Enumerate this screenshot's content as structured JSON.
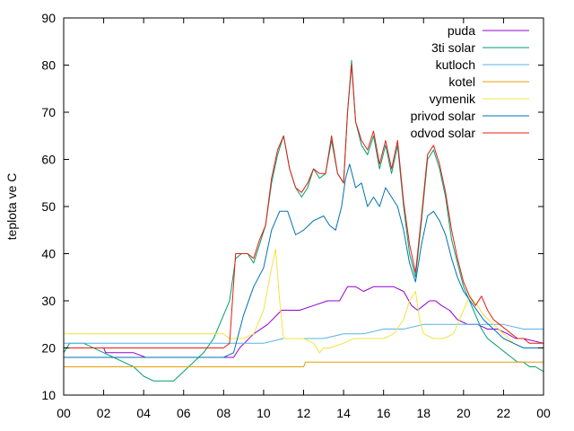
{
  "chart_data": {
    "type": "line",
    "title": "",
    "xlabel": "",
    "ylabel": "teplota ve C",
    "xlim": [
      0,
      24
    ],
    "ylim": [
      10,
      90
    ],
    "grid": false,
    "legend_position": "top-right",
    "x_tick_labels": [
      "00",
      "02",
      "04",
      "06",
      "08",
      "10",
      "12",
      "14",
      "16",
      "18",
      "20",
      "22",
      "00"
    ],
    "y_tick_labels": [
      "10",
      "20",
      "30",
      "40",
      "50",
      "60",
      "70",
      "80",
      "90"
    ],
    "series": [
      {
        "name": "puda",
        "color": "#9400d3",
        "x": [
          0,
          2,
          2.1,
          3.5,
          4.1,
          5,
          8.5,
          8.8,
          9.5,
          10.2,
          10.9,
          11.3,
          11.8,
          12.5,
          13.2,
          13.8,
          14.2,
          14.6,
          15,
          15.5,
          16,
          16.5,
          17,
          17.4,
          17.7,
          18,
          18.3,
          18.6,
          18.9,
          19.3,
          19.7,
          20.2,
          20.7,
          21.2,
          21.7,
          22.2,
          22.6,
          23,
          24
        ],
        "y": [
          20,
          20,
          19,
          19,
          18,
          18,
          18,
          20,
          23,
          25,
          28,
          28,
          28,
          29,
          30,
          30,
          33,
          33,
          32,
          33,
          33,
          33,
          32,
          29,
          28,
          29,
          30,
          30,
          29,
          28,
          26,
          25,
          25,
          24,
          24,
          23,
          22,
          22,
          21
        ]
      },
      {
        "name": "3ti solar",
        "color": "#009e73",
        "x": [
          0,
          0.3,
          1,
          2,
          2.5,
          3,
          3.5,
          4,
          4.5,
          5,
          5.5,
          6,
          6.5,
          7,
          7.5,
          8,
          8.3,
          8.6,
          8.9,
          9.2,
          9.5,
          9.8,
          10.1,
          10.4,
          10.7,
          11,
          11.3,
          11.6,
          11.9,
          12.2,
          12.5,
          12.8,
          13.1,
          13.4,
          13.7,
          14,
          14.2,
          14.4,
          14.6,
          14.9,
          15.2,
          15.5,
          15.8,
          16.1,
          16.4,
          16.7,
          17,
          17.3,
          17.6,
          17.9,
          18.2,
          18.5,
          18.8,
          19.1,
          19.4,
          19.7,
          20,
          20.3,
          20.6,
          20.9,
          21.2,
          21.5,
          21.8,
          22.1,
          22.4,
          22.7,
          23,
          23.3,
          23.6,
          24
        ],
        "y": [
          19,
          21,
          21,
          19,
          18,
          17,
          16,
          14,
          13,
          13,
          13,
          15,
          17,
          19,
          22,
          27,
          30,
          39,
          40,
          40,
          38,
          42,
          46,
          55,
          61,
          65,
          58,
          54,
          52,
          54,
          58,
          56,
          57,
          64,
          57,
          55,
          70,
          81,
          68,
          63,
          61,
          65,
          58,
          63,
          57,
          63,
          50,
          40,
          35,
          47,
          60,
          62,
          58,
          52,
          43,
          38,
          33,
          30,
          27,
          24,
          22,
          21,
          20,
          19,
          18,
          17,
          17,
          16,
          16,
          15
        ]
      },
      {
        "name": "kutloch",
        "color": "#56b4e9",
        "x": [
          0,
          2,
          2.5,
          3.5,
          4,
          8,
          9,
          10,
          11,
          12,
          13,
          14,
          15,
          16,
          17,
          18,
          19,
          20,
          21,
          22,
          23,
          24
        ],
        "y": [
          21,
          21,
          21,
          21,
          21,
          21,
          21,
          21,
          22,
          22,
          22,
          23,
          23,
          24,
          24,
          25,
          25,
          25,
          25,
          25,
          24,
          24
        ]
      },
      {
        "name": "kotel",
        "color": "#e69f00",
        "x": [
          0,
          12,
          12.1,
          24
        ],
        "y": [
          16,
          16,
          17,
          17
        ]
      },
      {
        "name": "vymenik",
        "color": "#f0e442",
        "x": [
          0,
          8,
          8.3,
          8.6,
          9,
          9.5,
          10,
          10.4,
          10.6,
          10.8,
          11,
          11.3,
          12,
          12.5,
          12.8,
          13,
          13.3,
          14,
          14.5,
          15,
          16,
          16.5,
          17,
          17.3,
          17.6,
          17.8,
          18,
          18.5,
          19,
          19.5,
          20,
          20.3,
          20.7,
          21,
          21.5,
          22,
          22.5,
          23,
          24
        ],
        "y": [
          23,
          23,
          22,
          22,
          22,
          23,
          28,
          37,
          41,
          30,
          22,
          22,
          22,
          21,
          19,
          20,
          20,
          21,
          22,
          22,
          22,
          23,
          26,
          30,
          32,
          26,
          23,
          22,
          22,
          23,
          28,
          31,
          29,
          27,
          25,
          23,
          21,
          20,
          20
        ]
      },
      {
        "name": "privod solar",
        "color": "#0072b2",
        "x": [
          0,
          8,
          8.5,
          9,
          9.5,
          10,
          10.4,
          10.8,
          11.2,
          11.6,
          12,
          12.5,
          13,
          13.3,
          13.6,
          13.9,
          14.1,
          14.3,
          14.6,
          14.9,
          15.2,
          15.5,
          15.8,
          16.1,
          16.4,
          16.7,
          17,
          17.3,
          17.6,
          17.9,
          18.2,
          18.5,
          18.8,
          19.1,
          19.4,
          19.7,
          20,
          20.5,
          21,
          21.5,
          22,
          22.5,
          23,
          23.5,
          24
        ],
        "y": [
          18,
          18,
          19,
          27,
          33,
          37,
          45,
          49,
          49,
          44,
          45,
          47,
          48,
          46,
          45,
          50,
          56,
          59,
          54,
          55,
          50,
          52,
          50,
          54,
          52,
          50,
          45,
          38,
          34,
          42,
          48,
          49,
          47,
          44,
          39,
          35,
          32,
          29,
          26,
          24,
          22,
          21,
          20,
          20,
          20
        ]
      },
      {
        "name": "odvod solar",
        "color": "#e51e10",
        "x": [
          0,
          8,
          8.3,
          8.6,
          8.9,
          9.2,
          9.5,
          9.8,
          10.1,
          10.4,
          10.7,
          11,
          11.3,
          11.6,
          11.9,
          12.2,
          12.5,
          12.8,
          13.1,
          13.4,
          13.7,
          14,
          14.2,
          14.4,
          14.6,
          14.9,
          15.2,
          15.5,
          15.8,
          16.1,
          16.4,
          16.7,
          17,
          17.3,
          17.6,
          17.9,
          18.2,
          18.5,
          18.8,
          19.1,
          19.4,
          19.7,
          20,
          20.3,
          20.6,
          20.9,
          21.2,
          21.5,
          21.8,
          22.1,
          22.4,
          22.7,
          23,
          23.3,
          23.6,
          24
        ],
        "y": [
          20,
          20,
          21,
          40,
          40,
          40,
          39,
          43,
          46,
          56,
          62,
          65,
          58,
          54,
          53,
          55,
          58,
          57,
          57,
          65,
          57,
          55,
          70,
          80,
          68,
          64,
          62,
          66,
          59,
          64,
          58,
          64,
          51,
          42,
          36,
          48,
          61,
          63,
          59,
          53,
          45,
          39,
          34,
          31,
          29,
          31,
          28,
          26,
          25,
          24,
          23,
          22,
          22,
          21,
          21,
          21
        ]
      }
    ]
  }
}
